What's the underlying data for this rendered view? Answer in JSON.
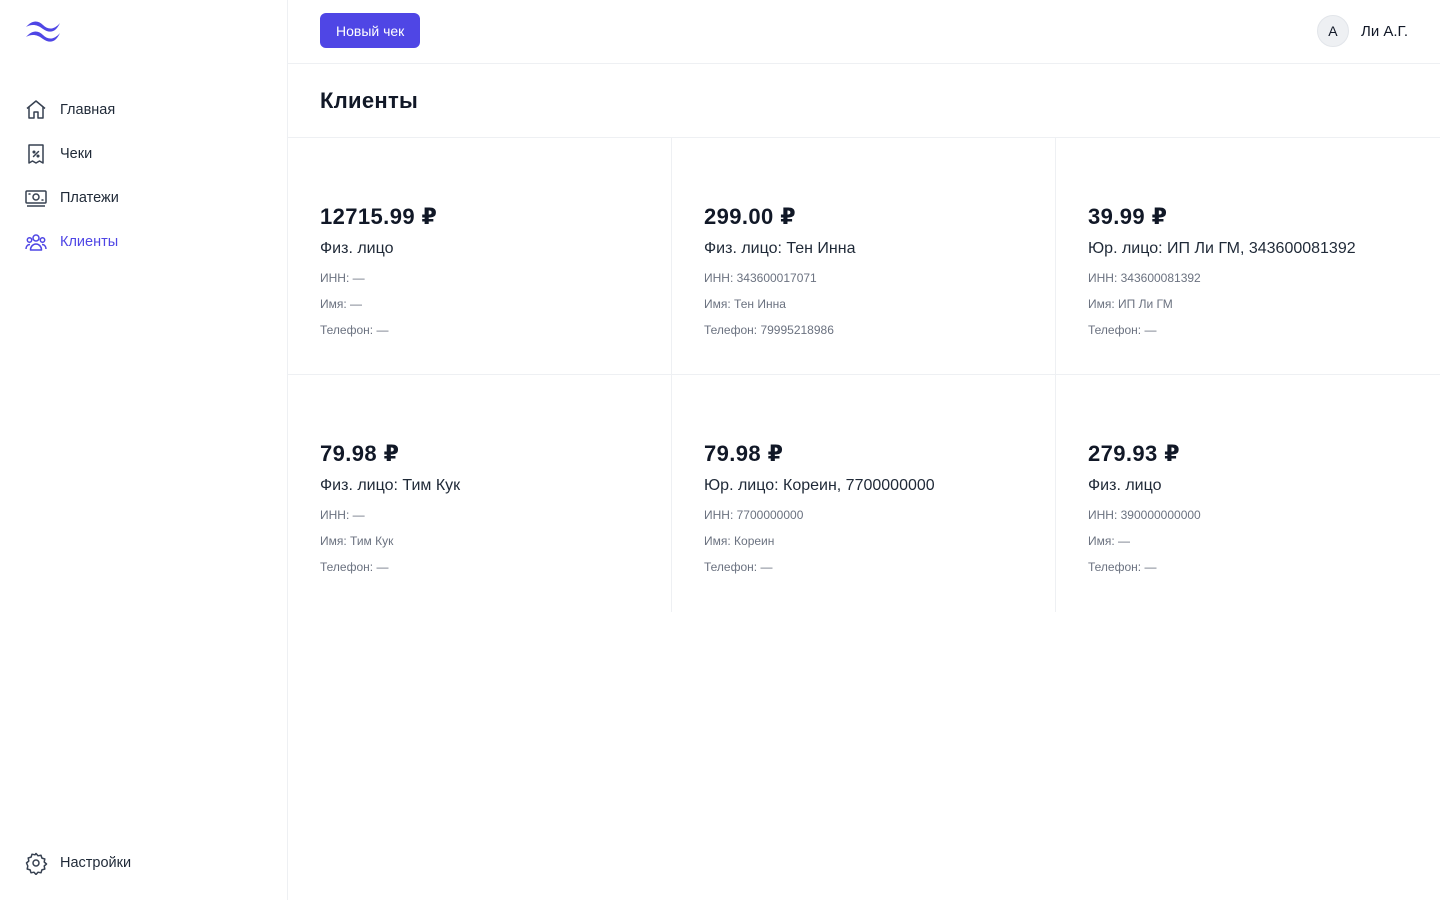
{
  "sidebar": {
    "items": [
      {
        "label": "Главная",
        "icon": "home-icon"
      },
      {
        "label": "Чеки",
        "icon": "receipt-icon"
      },
      {
        "label": "Платежи",
        "icon": "banknote-icon"
      },
      {
        "label": "Клиенты",
        "icon": "users-icon"
      }
    ],
    "settings_label": "Настройки",
    "active_index": 3
  },
  "header": {
    "new_button_label": "Новый чек",
    "avatar_initial": "A",
    "user_name": "Ли А.Г."
  },
  "page": {
    "title": "Клиенты"
  },
  "clients": [
    {
      "amount": "12715.99 ₽",
      "title": "Физ. лицо",
      "inn": "ИНН: —",
      "name": "Имя: —",
      "phone": "Телефон: —"
    },
    {
      "amount": "299.00 ₽",
      "title": "Физ. лицо: Тен Инна",
      "inn": "ИНН: 343600017071",
      "name": "Имя: Тен Инна",
      "phone": "Телефон: 79995218986"
    },
    {
      "amount": "39.99 ₽",
      "title": "Юр. лицо: ИП Ли ГМ, 343600081392",
      "inn": "ИНН: 343600081392",
      "name": "Имя: ИП Ли ГМ",
      "phone": "Телефон: —"
    },
    {
      "amount": "79.98 ₽",
      "title": "Физ. лицо: Тим Кук",
      "inn": "ИНН: —",
      "name": "Имя: Тим Кук",
      "phone": "Телефон: —"
    },
    {
      "amount": "79.98 ₽",
      "title": "Юр. лицо: Кореин, 7700000000",
      "inn": "ИНН: 7700000000",
      "name": "Имя: Кореин",
      "phone": "Телефон: —"
    },
    {
      "amount": "279.93 ₽",
      "title": "Физ. лицо",
      "inn": "ИНН: 390000000000",
      "name": "Имя: —",
      "phone": "Телефон: —"
    }
  ],
  "colors": {
    "accent": "#4f46e5",
    "text": "#111827",
    "muted": "#6b7280",
    "border": "#eef0f3"
  }
}
